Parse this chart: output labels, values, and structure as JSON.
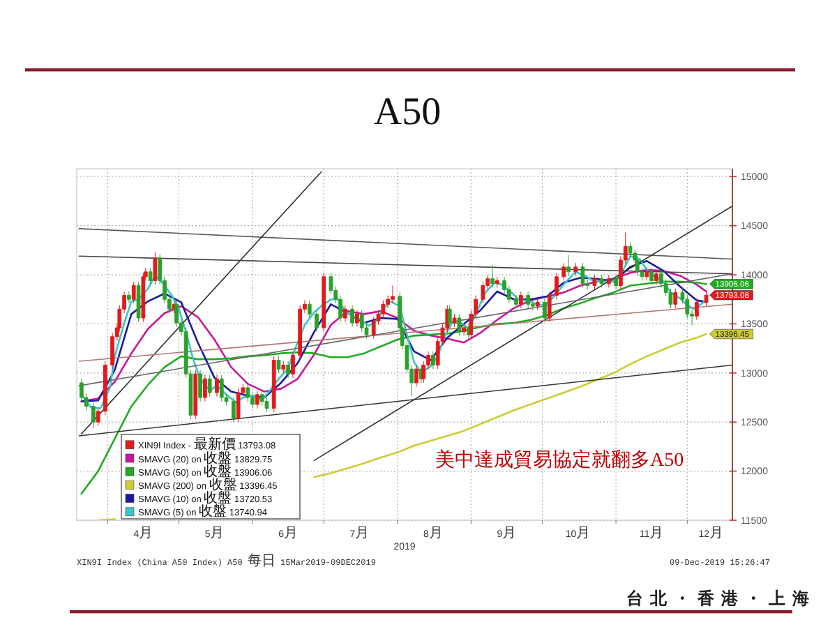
{
  "chart_data": {
    "type": "candlestick",
    "title": "A50",
    "xlabel": "2019",
    "annotations": [
      "美中達成貿易協定就翻多A50",
      "XIN9I Index (China A50 Index) A50 每日 15Mar2019-09DEC2019",
      "09-Dec-2019 15:26:47",
      "台北・香港・上海"
    ],
    "xlim": [
      "2019-03-19",
      "2019-12-20"
    ],
    "xticks": [
      {
        "value": "2019-04-01",
        "label": null
      },
      {
        "value": "2019-04-16",
        "label": "4月"
      },
      {
        "value": "2019-05-01",
        "label": null
      },
      {
        "value": "2019-05-16",
        "label": "5月"
      },
      {
        "value": "2019-06-01",
        "label": null
      },
      {
        "value": "2019-06-16",
        "label": "6月"
      },
      {
        "value": "2019-07-01",
        "label": null
      },
      {
        "value": "2019-07-16",
        "label": "7月"
      },
      {
        "value": "2019-08-01",
        "label": null
      },
      {
        "value": "2019-08-16",
        "label": "8月"
      },
      {
        "value": "2019-09-01",
        "label": null
      },
      {
        "value": "2019-09-16",
        "label": "9月"
      },
      {
        "value": "2019-10-01",
        "label": null
      },
      {
        "value": "2019-10-16",
        "label": "10月"
      },
      {
        "value": "2019-11-01",
        "label": null
      },
      {
        "value": "2019-11-16",
        "label": "11月"
      },
      {
        "value": "2019-12-01",
        "label": null
      },
      {
        "value": "2019-12-11",
        "label": "12月"
      }
    ],
    "ylim": [
      11500,
      15080
    ],
    "yticks": [
      11500,
      12000,
      12500,
      13000,
      13500,
      14000,
      14500,
      15000
    ],
    "grid": true,
    "legend": "bottom left",
    "series": [
      {
        "type": "candlestick",
        "name": "XIN9I Index - 最新價 13793.08",
        "color": "#e31a1c",
        "x": [
          "2019-03-21",
          "2019-03-23",
          "2019-03-26",
          "2019-03-28",
          "2019-03-31",
          "2019-04-03",
          "2019-04-05",
          "2019-04-06",
          "2019-04-08",
          "2019-04-10",
          "2019-04-12",
          "2019-04-14",
          "2019-04-16",
          "2019-04-17",
          "2019-04-19",
          "2019-04-21",
          "2019-04-23",
          "2019-04-25",
          "2019-04-27",
          "2019-04-29",
          "2019-04-30",
          "2019-05-02",
          "2019-05-04",
          "2019-05-06",
          "2019-05-08",
          "2019-05-10",
          "2019-05-12",
          "2019-05-14",
          "2019-05-17",
          "2019-05-19",
          "2019-05-21",
          "2019-05-24",
          "2019-05-26",
          "2019-05-28",
          "2019-05-30",
          "2019-06-01",
          "2019-06-03",
          "2019-06-05",
          "2019-06-07",
          "2019-06-10",
          "2019-06-12",
          "2019-06-14",
          "2019-06-16",
          "2019-06-18",
          "2019-06-21",
          "2019-06-23",
          "2019-06-25",
          "2019-06-28",
          "2019-07-01",
          "2019-07-04",
          "2019-07-06",
          "2019-07-08",
          "2019-07-10",
          "2019-07-13",
          "2019-07-15",
          "2019-07-17",
          "2019-07-19",
          "2019-07-22",
          "2019-07-24",
          "2019-07-26",
          "2019-07-28",
          "2019-07-30",
          "2019-08-02",
          "2019-08-03",
          "2019-08-05",
          "2019-08-07",
          "2019-08-09",
          "2019-08-11",
          "2019-08-12",
          "2019-08-14",
          "2019-08-16",
          "2019-08-18",
          "2019-08-20",
          "2019-08-22",
          "2019-08-23",
          "2019-08-25",
          "2019-08-27",
          "2019-08-29",
          "2019-08-31",
          "2019-09-01",
          "2019-09-03",
          "2019-09-06",
          "2019-09-08",
          "2019-09-10",
          "2019-09-12",
          "2019-09-15",
          "2019-09-17",
          "2019-09-20",
          "2019-09-22",
          "2019-09-25",
          "2019-09-27",
          "2019-09-29",
          "2019-10-02",
          "2019-10-04",
          "2019-10-07",
          "2019-10-10",
          "2019-10-12",
          "2019-10-15",
          "2019-10-18",
          "2019-10-20",
          "2019-10-23",
          "2019-10-26",
          "2019-10-29",
          "2019-11-01",
          "2019-11-03",
          "2019-11-05",
          "2019-11-07",
          "2019-11-09",
          "2019-11-10",
          "2019-11-12",
          "2019-11-14",
          "2019-11-16",
          "2019-11-18",
          "2019-11-20",
          "2019-11-22",
          "2019-11-24",
          "2019-11-26",
          "2019-11-29",
          "2019-12-01",
          "2019-12-03",
          "2019-12-05",
          "2019-12-09"
        ],
        "ohlc": [
          [
            12900,
            12940,
            12710,
            12750
          ],
          [
            12750,
            12790,
            12620,
            12660
          ],
          [
            12660,
            12700,
            12440,
            12500
          ],
          [
            12500,
            12650,
            12460,
            12610
          ],
          [
            12610,
            13120,
            12570,
            13080
          ],
          [
            13080,
            13410,
            13040,
            13370
          ],
          [
            13370,
            13500,
            13330,
            13460
          ],
          [
            13460,
            13690,
            13420,
            13650
          ],
          [
            13650,
            13830,
            13610,
            13790
          ],
          [
            13790,
            13830,
            13710,
            13750
          ],
          [
            13750,
            13930,
            13710,
            13890
          ],
          [
            13890,
            13930,
            13520,
            13560
          ],
          [
            13560,
            14020,
            13520,
            13980
          ],
          [
            13980,
            14070,
            13940,
            14030
          ],
          [
            14030,
            14070,
            13900,
            13940
          ],
          [
            13940,
            14230,
            13900,
            14170
          ],
          [
            14170,
            14210,
            13900,
            13940
          ],
          [
            13940,
            13980,
            13710,
            13750
          ],
          [
            13750,
            13790,
            13610,
            13650
          ],
          [
            13650,
            13740,
            13610,
            13700
          ],
          [
            13700,
            13740,
            13470,
            13510
          ],
          [
            13510,
            13550,
            13380,
            13420
          ],
          [
            13420,
            13460,
            12950,
            12990
          ],
          [
            12990,
            13030,
            12530,
            12570
          ],
          [
            12570,
            13030,
            12530,
            12990
          ],
          [
            12990,
            13030,
            12710,
            12750
          ],
          [
            12750,
            12980,
            12710,
            12940
          ],
          [
            12940,
            12980,
            12760,
            12800
          ],
          [
            12800,
            12980,
            12760,
            12940
          ],
          [
            12940,
            12980,
            12710,
            12750
          ],
          [
            12750,
            12790,
            12670,
            12710
          ],
          [
            12710,
            12750,
            12500,
            12540
          ],
          [
            12540,
            12840,
            12500,
            12800
          ],
          [
            12800,
            12890,
            12760,
            12850
          ],
          [
            12850,
            12890,
            12710,
            12750
          ],
          [
            12750,
            12790,
            12640,
            12680
          ],
          [
            12680,
            12820,
            12640,
            12780
          ],
          [
            12780,
            12820,
            12670,
            12710
          ],
          [
            12710,
            12750,
            12600,
            12640
          ],
          [
            12640,
            13170,
            12600,
            13130
          ],
          [
            13130,
            13170,
            13000,
            13040
          ],
          [
            13040,
            13120,
            13000,
            13080
          ],
          [
            13080,
            13120,
            12950,
            12990
          ],
          [
            12990,
            13220,
            12950,
            13180
          ],
          [
            13180,
            13690,
            13140,
            13650
          ],
          [
            13650,
            13740,
            13610,
            13700
          ],
          [
            13700,
            13740,
            13560,
            13600
          ],
          [
            13600,
            13640,
            13420,
            13460
          ],
          [
            13460,
            14020,
            13420,
            13980
          ],
          [
            13980,
            14020,
            13800,
            13840
          ],
          [
            13840,
            13880,
            13710,
            13750
          ],
          [
            13750,
            13790,
            13520,
            13560
          ],
          [
            13560,
            13690,
            13520,
            13650
          ],
          [
            13650,
            13690,
            13470,
            13510
          ],
          [
            13510,
            13640,
            13470,
            13600
          ],
          [
            13600,
            13640,
            13420,
            13460
          ],
          [
            13460,
            13500,
            13350,
            13390
          ],
          [
            13390,
            13570,
            13350,
            13530
          ],
          [
            13530,
            13640,
            13490,
            13600
          ],
          [
            13600,
            13740,
            13560,
            13700
          ],
          [
            13700,
            13790,
            13660,
            13750
          ],
          [
            13750,
            13890,
            13710,
            13780
          ],
          [
            13780,
            13820,
            13420,
            13460
          ],
          [
            13460,
            13500,
            13240,
            13280
          ],
          [
            13280,
            13320,
            13000,
            13040
          ],
          [
            13040,
            13080,
            12760,
            12900
          ],
          [
            12900,
            13080,
            12860,
            13040
          ],
          [
            13040,
            13080,
            12900,
            12940
          ],
          [
            12940,
            13120,
            12900,
            13080
          ],
          [
            13080,
            13220,
            13040,
            13180
          ],
          [
            13180,
            13220,
            13040,
            13080
          ],
          [
            13080,
            13360,
            13040,
            13320
          ],
          [
            13320,
            13500,
            13280,
            13460
          ],
          [
            13460,
            13690,
            13420,
            13650
          ],
          [
            13650,
            13690,
            13470,
            13510
          ],
          [
            13510,
            13600,
            13470,
            13560
          ],
          [
            13560,
            13600,
            13380,
            13420
          ],
          [
            13420,
            13500,
            13380,
            13460
          ],
          [
            13460,
            13500,
            13350,
            13390
          ],
          [
            13390,
            13640,
            13350,
            13600
          ],
          [
            13600,
            13790,
            13560,
            13750
          ],
          [
            13750,
            13930,
            13710,
            13890
          ],
          [
            13890,
            14000,
            13850,
            13960
          ],
          [
            13960,
            14100,
            13870,
            13910
          ],
          [
            13910,
            13980,
            13870,
            13940
          ],
          [
            13940,
            13980,
            13810,
            13850
          ],
          [
            13850,
            13890,
            13710,
            13750
          ],
          [
            13750,
            13790,
            13660,
            13700
          ],
          [
            13700,
            13830,
            13660,
            13790
          ],
          [
            13790,
            13830,
            13660,
            13700
          ],
          [
            13700,
            13740,
            13640,
            13680
          ],
          [
            13680,
            13760,
            13640,
            13720
          ],
          [
            13720,
            13760,
            13520,
            13560
          ],
          [
            13560,
            13830,
            13520,
            13790
          ],
          [
            13790,
            14020,
            13750,
            13980
          ],
          [
            13980,
            14120,
            13940,
            14080
          ],
          [
            14080,
            14200,
            13990,
            14030
          ],
          [
            14030,
            14120,
            13990,
            14080
          ],
          [
            14080,
            14120,
            13870,
            13910
          ],
          [
            13910,
            13950,
            13850,
            13890
          ],
          [
            13890,
            14000,
            13850,
            13960
          ],
          [
            13960,
            14000,
            13870,
            13910
          ],
          [
            13910,
            14000,
            13870,
            13960
          ],
          [
            13960,
            14000,
            13850,
            13890
          ],
          [
            13890,
            14190,
            13850,
            14150
          ],
          [
            14150,
            14430,
            14110,
            14290
          ],
          [
            14290,
            14330,
            14180,
            14220
          ],
          [
            14220,
            14260,
            14110,
            14150
          ],
          [
            14150,
            14190,
            13990,
            14030
          ],
          [
            14030,
            14070,
            13940,
            13980
          ],
          [
            13980,
            14070,
            13940,
            14030
          ],
          [
            14030,
            14070,
            13900,
            13940
          ],
          [
            13940,
            14050,
            13900,
            14010
          ],
          [
            14010,
            14050,
            13870,
            13910
          ],
          [
            13910,
            13950,
            13780,
            13820
          ],
          [
            13820,
            13860,
            13660,
            13700
          ],
          [
            13700,
            13860,
            13660,
            13820
          ],
          [
            13820,
            13860,
            13710,
            13750
          ],
          [
            13750,
            13790,
            13560,
            13600
          ],
          [
            13600,
            13640,
            13490,
            13580
          ],
          [
            13580,
            13760,
            13540,
            13720
          ],
          [
            13720,
            13830,
            13680,
            13793.08
          ]
        ],
        "colors": [
          "#2ca02c",
          "#2ca02c",
          "#2ca02c",
          "#e31a1c",
          "#e31a1c",
          "#e31a1c",
          "#e31a1c",
          "#e31a1c",
          "#e31a1c",
          "#2ca02c",
          "#e31a1c",
          "#2ca02c",
          "#e31a1c",
          "#e31a1c",
          "#2ca02c",
          "#e31a1c",
          "#2ca02c",
          "#2ca02c",
          "#2ca02c",
          "#e31a1c",
          "#2ca02c",
          "#2ca02c",
          "#2ca02c",
          "#2ca02c",
          "#e31a1c",
          "#2ca02c",
          "#e31a1c",
          "#2ca02c",
          "#e31a1c",
          "#2ca02c",
          "#2ca02c",
          "#2ca02c",
          "#e31a1c",
          "#e31a1c",
          "#2ca02c",
          "#2ca02c",
          "#e31a1c",
          "#2ca02c",
          "#2ca02c",
          "#e31a1c",
          "#2ca02c",
          "#e31a1c",
          "#2ca02c",
          "#e31a1c",
          "#e31a1c",
          "#e31a1c",
          "#2ca02c",
          "#2ca02c",
          "#e31a1c",
          "#2ca02c",
          "#2ca02c",
          "#2ca02c",
          "#e31a1c",
          "#2ca02c",
          "#e31a1c",
          "#2ca02c",
          "#2ca02c",
          "#e31a1c",
          "#e31a1c",
          "#e31a1c",
          "#e31a1c",
          "#e31a1c",
          "#2ca02c",
          "#2ca02c",
          "#2ca02c",
          "#2ca02c",
          "#e31a1c",
          "#2ca02c",
          "#e31a1c",
          "#e31a1c",
          "#2ca02c",
          "#e31a1c",
          "#e31a1c",
          "#e31a1c",
          "#2ca02c",
          "#e31a1c",
          "#2ca02c",
          "#e31a1c",
          "#2ca02c",
          "#e31a1c",
          "#e31a1c",
          "#e31a1c",
          "#e31a1c",
          "#2ca02c",
          "#e31a1c",
          "#2ca02c",
          "#2ca02c",
          "#2ca02c",
          "#e31a1c",
          "#2ca02c",
          "#2ca02c",
          "#e31a1c",
          "#2ca02c",
          "#e31a1c",
          "#e31a1c",
          "#e31a1c",
          "#2ca02c",
          "#e31a1c",
          "#2ca02c",
          "#2ca02c",
          "#e31a1c",
          "#2ca02c",
          "#e31a1c",
          "#2ca02c",
          "#e31a1c",
          "#e31a1c",
          "#2ca02c",
          "#2ca02c",
          "#2ca02c",
          "#2ca02c",
          "#e31a1c",
          "#2ca02c",
          "#e31a1c",
          "#2ca02c",
          "#2ca02c",
          "#2ca02c",
          "#e31a1c",
          "#2ca02c",
          "#2ca02c",
          "#2ca02c",
          "#e31a1c",
          "#e31a1c"
        ],
        "value_labels": [
          null,
          null,
          null,
          null,
          null,
          null,
          null,
          null,
          null,
          null,
          null,
          null,
          null,
          null,
          null,
          null,
          null,
          null,
          null,
          null,
          null,
          null,
          null,
          null,
          null,
          null,
          null,
          null,
          null,
          null,
          null,
          null,
          null,
          null,
          null,
          null,
          null,
          null,
          null,
          null,
          null,
          null,
          null,
          null,
          null,
          null,
          null,
          null,
          null,
          null,
          null,
          null,
          null,
          null,
          null,
          null,
          null,
          null,
          null,
          null,
          null,
          null,
          null,
          null,
          null,
          null,
          null,
          null,
          null,
          null,
          null,
          null,
          null,
          null,
          null,
          null,
          null,
          null,
          null,
          null,
          null,
          null,
          null,
          null,
          null,
          null,
          null,
          null,
          null,
          null,
          null,
          null,
          null,
          null,
          null,
          null,
          null,
          null,
          null,
          null,
          null,
          null,
          null,
          null,
          null,
          null,
          null,
          null,
          null,
          null,
          null,
          null,
          null,
          null,
          null,
          null,
          null,
          null,
          null,
          null,
          null,
          "13793.08"
        ]
      },
      {
        "type": "line",
        "name": "SMAVG (20) on 收盤 13829.75",
        "color": "#c8179b",
        "x": [
          "2019-03-21",
          "2019-03-28",
          "2019-04-04",
          "2019-04-11",
          "2019-04-18",
          "2019-04-25",
          "2019-05-02",
          "2019-05-09",
          "2019-05-16",
          "2019-05-23",
          "2019-05-30",
          "2019-06-06",
          "2019-06-13",
          "2019-06-20",
          "2019-06-27",
          "2019-07-04",
          "2019-07-11",
          "2019-07-18",
          "2019-07-25",
          "2019-08-01",
          "2019-08-08",
          "2019-08-15",
          "2019-08-22",
          "2019-08-29",
          "2019-09-05",
          "2019-09-12",
          "2019-09-19",
          "2019-09-26",
          "2019-10-03",
          "2019-10-10",
          "2019-10-17",
          "2019-10-24",
          "2019-10-31",
          "2019-11-07",
          "2019-11-14",
          "2019-11-21",
          "2019-11-28",
          "2019-12-05",
          "2019-12-09"
        ],
        "values": [
          12710,
          12740,
          12910,
          13200,
          13450,
          13610,
          13680,
          13570,
          13340,
          13060,
          12890,
          12810,
          12840,
          12940,
          13190,
          13490,
          13630,
          13600,
          13630,
          13560,
          13430,
          13380,
          13350,
          13310,
          13410,
          13540,
          13660,
          13740,
          13780,
          13820,
          13890,
          13930,
          13960,
          14020,
          14050,
          14040,
          13990,
          13900,
          13829.75
        ]
      },
      {
        "type": "line",
        "name": "SMAVG (50) on 收盤 13906.06",
        "color": "#22aa22",
        "x": [
          "2019-03-21",
          "2019-03-28",
          "2019-04-04",
          "2019-04-11",
          "2019-04-18",
          "2019-04-25",
          "2019-05-02",
          "2019-05-09",
          "2019-05-16",
          "2019-05-23",
          "2019-05-30",
          "2019-06-06",
          "2019-06-13",
          "2019-06-20",
          "2019-06-27",
          "2019-07-04",
          "2019-07-11",
          "2019-07-18",
          "2019-07-25",
          "2019-08-01",
          "2019-08-08",
          "2019-08-15",
          "2019-08-22",
          "2019-08-29",
          "2019-09-05",
          "2019-09-12",
          "2019-09-19",
          "2019-09-26",
          "2019-10-03",
          "2019-10-10",
          "2019-10-17",
          "2019-10-24",
          "2019-10-31",
          "2019-11-07",
          "2019-11-14",
          "2019-11-21",
          "2019-11-28",
          "2019-12-05",
          "2019-12-09"
        ],
        "values": [
          11770,
          12000,
          12330,
          12660,
          12880,
          13060,
          13170,
          13140,
          13140,
          13150,
          13170,
          13180,
          13200,
          13210,
          13200,
          13160,
          13160,
          13200,
          13270,
          13340,
          13380,
          13390,
          13400,
          13430,
          13470,
          13500,
          13510,
          13540,
          13590,
          13660,
          13710,
          13770,
          13820,
          13890,
          13910,
          13930,
          13930,
          13920,
          13906.06
        ],
        "value_labels": [
          null,
          null,
          null,
          null,
          null,
          null,
          null,
          null,
          null,
          null,
          null,
          null,
          null,
          null,
          null,
          null,
          null,
          null,
          null,
          null,
          null,
          null,
          null,
          null,
          null,
          null,
          null,
          null,
          null,
          null,
          null,
          null,
          null,
          null,
          null,
          null,
          null,
          null,
          "13906.06"
        ]
      },
      {
        "type": "line",
        "name": "SMAVG (200) on 收盤 13396.45",
        "color": "#cccc33",
        "x": [
          "2019-03-28",
          "2019-04-04",
          "2019-04-11",
          "2019-04-18",
          "2019-04-25",
          "2019-05-02",
          "2019-05-09",
          "2019-05-16",
          "2019-05-23",
          "2019-05-30",
          "2019-06-06",
          "2019-06-13",
          "2019-06-20",
          "2019-06-27",
          "2019-07-04",
          "2019-07-11",
          "2019-07-18",
          "2019-07-25",
          "2019-08-01",
          "2019-08-08",
          "2019-08-15",
          "2019-08-22",
          "2019-08-29",
          "2019-09-05",
          "2019-09-12",
          "2019-09-19",
          "2019-09-26",
          "2019-10-03",
          "2019-10-10",
          "2019-10-17",
          "2019-10-24",
          "2019-10-31",
          "2019-11-07",
          "2019-11-14",
          "2019-11-21",
          "2019-11-28",
          "2019-12-05",
          "2019-12-09"
        ],
        "values": [
          11500,
          11510,
          null,
          null,
          null,
          null,
          null,
          null,
          null,
          null,
          null,
          null,
          null,
          11940,
          11980,
          12030,
          12080,
          12140,
          12190,
          12260,
          12310,
          12360,
          12410,
          12480,
          12550,
          12620,
          12680,
          12740,
          12800,
          12860,
          12930,
          13000,
          13090,
          13170,
          13240,
          13310,
          13360,
          13396.45
        ],
        "value_labels": [
          null,
          null,
          null,
          null,
          null,
          null,
          null,
          null,
          null,
          null,
          null,
          null,
          null,
          null,
          null,
          null,
          null,
          null,
          null,
          null,
          null,
          null,
          null,
          null,
          null,
          null,
          null,
          null,
          null,
          null,
          null,
          null,
          null,
          null,
          null,
          null,
          null,
          "13396.45"
        ]
      },
      {
        "type": "line",
        "name": "SMAVG (10) on 收盤 13720.53",
        "color": "#1a1a9c",
        "x": [
          "2019-03-21",
          "2019-03-28",
          "2019-04-04",
          "2019-04-11",
          "2019-04-18",
          "2019-04-25",
          "2019-05-02",
          "2019-05-09",
          "2019-05-16",
          "2019-05-23",
          "2019-05-30",
          "2019-06-06",
          "2019-06-13",
          "2019-06-20",
          "2019-06-27",
          "2019-07-04",
          "2019-07-11",
          "2019-07-18",
          "2019-07-25",
          "2019-08-01",
          "2019-08-08",
          "2019-08-15",
          "2019-08-22",
          "2019-08-29",
          "2019-09-05",
          "2019-09-12",
          "2019-09-19",
          "2019-09-26",
          "2019-10-03",
          "2019-10-10",
          "2019-10-17",
          "2019-10-24",
          "2019-10-31",
          "2019-11-07",
          "2019-11-14",
          "2019-11-21",
          "2019-11-28",
          "2019-12-05",
          "2019-12-09"
        ],
        "values": [
          12710,
          12720,
          13030,
          13600,
          13730,
          13810,
          13720,
          13310,
          12950,
          12810,
          12770,
          12750,
          12900,
          13100,
          13420,
          13700,
          13610,
          13510,
          13560,
          13550,
          13220,
          13130,
          13360,
          13500,
          13640,
          13830,
          13750,
          13750,
          13780,
          13920,
          13970,
          13960,
          13930,
          14080,
          14140,
          14040,
          13880,
          13740,
          13720.53
        ]
      },
      {
        "type": "line",
        "name": "SMAVG (5) on 收盤 13740.94",
        "color": "#38c6c6",
        "x": [
          "2019-03-21",
          "2019-03-25",
          "2019-03-29",
          "2019-04-02",
          "2019-04-04",
          "2019-04-08",
          "2019-04-11",
          "2019-04-14",
          "2019-04-18",
          "2019-04-21",
          "2019-04-24",
          "2019-04-28",
          "2019-05-01",
          "2019-05-04",
          "2019-05-07",
          "2019-05-10",
          "2019-05-14",
          "2019-05-17",
          "2019-05-21",
          "2019-05-25",
          "2019-05-28",
          "2019-06-01",
          "2019-06-05",
          "2019-06-08",
          "2019-06-12",
          "2019-06-16",
          "2019-06-19",
          "2019-06-23",
          "2019-06-27",
          "2019-06-30",
          "2019-07-04",
          "2019-07-07",
          "2019-07-10",
          "2019-07-13",
          "2019-07-16",
          "2019-07-20",
          "2019-07-23",
          "2019-07-26",
          "2019-07-29",
          "2019-08-02",
          "2019-08-05",
          "2019-08-08",
          "2019-08-11",
          "2019-08-15",
          "2019-08-18",
          "2019-08-21",
          "2019-08-24",
          "2019-08-28",
          "2019-08-31",
          "2019-09-03",
          "2019-09-07",
          "2019-09-11",
          "2019-09-14",
          "2019-09-18",
          "2019-09-21",
          "2019-09-25",
          "2019-09-29",
          "2019-10-02",
          "2019-10-06",
          "2019-10-11",
          "2019-10-15",
          "2019-10-19",
          "2019-10-23",
          "2019-10-27",
          "2019-10-31",
          "2019-11-04",
          "2019-11-07",
          "2019-11-11",
          "2019-11-14",
          "2019-11-17",
          "2019-11-21",
          "2019-11-24",
          "2019-11-28",
          "2019-12-01",
          "2019-12-04",
          "2019-12-09"
        ],
        "values": [
          12780,
          12650,
          12640,
          12850,
          13170,
          13510,
          13730,
          13750,
          13860,
          13990,
          13920,
          13790,
          13650,
          13420,
          13140,
          12940,
          12820,
          12870,
          12780,
          12700,
          12750,
          12770,
          12730,
          12810,
          12940,
          13050,
          13250,
          13490,
          13620,
          13680,
          13750,
          13750,
          13630,
          13580,
          13550,
          13480,
          13530,
          13650,
          13730,
          13680,
          13390,
          13110,
          13000,
          13070,
          13170,
          13380,
          13510,
          13510,
          13450,
          13600,
          13820,
          13920,
          13900,
          13820,
          13750,
          13730,
          13700,
          13690,
          13780,
          13930,
          14030,
          13990,
          13930,
          13930,
          13930,
          14050,
          14190,
          14160,
          14050,
          13990,
          13930,
          13820,
          13760,
          13690,
          13650,
          13740.94
        ]
      },
      {
        "type": "line",
        "color": "#555555",
        "x": [
          "2019-03-20",
          "2019-12-20"
        ],
        "values": [
          14470,
          14160
        ]
      },
      {
        "type": "line",
        "color": "#444444",
        "x": [
          "2019-03-20",
          "2019-12-20"
        ],
        "values": [
          14190,
          14010
        ]
      },
      {
        "type": "line",
        "color": "#333333",
        "x": [
          "2019-03-21",
          "2019-06-30"
        ],
        "values": [
          12380,
          15050
        ]
      },
      {
        "type": "line",
        "color": "#333333",
        "x": [
          "2019-06-27",
          "2019-12-20"
        ],
        "values": [
          12110,
          14700
        ]
      },
      {
        "type": "line",
        "color": "#333333",
        "x": [
          "2019-03-20",
          "2019-12-20"
        ],
        "values": [
          12360,
          13080
        ]
      },
      {
        "type": "line",
        "color": "#b07878",
        "x": [
          "2019-03-20",
          "2019-12-20"
        ],
        "values": [
          13120,
          13700
        ]
      },
      {
        "type": "line",
        "color": "#666666",
        "x": [
          "2019-03-20",
          "2019-12-20"
        ],
        "values": [
          12870,
          14010
        ]
      }
    ]
  }
}
